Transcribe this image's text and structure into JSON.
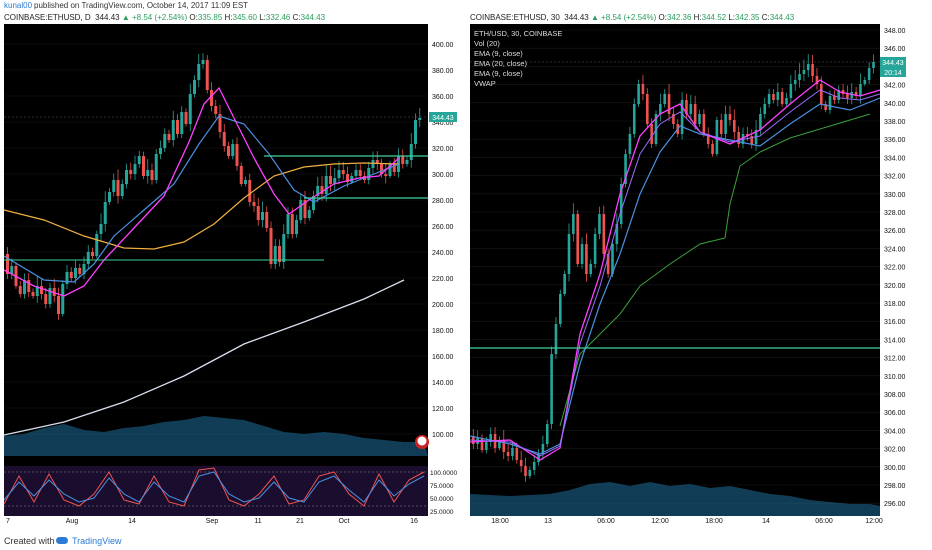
{
  "publisher": {
    "user": "kunal00",
    "text": "published on TradingView.com, October 14, 2017 11:09 EST"
  },
  "left_header": {
    "symbol": "COINBASE:ETHUSD, D",
    "price": "344.43",
    "change": "▲ +8.54 (+2.54%)",
    "o_label": "O:",
    "o": "335.85",
    "h_label": "H:",
    "h": "345.60",
    "l_label": "L:",
    "l": "332.46",
    "c_label": "C:",
    "c": "344.43"
  },
  "right_header": {
    "symbol": "COINBASE:ETHUSD, 30",
    "price": "344.43",
    "change": "▲ +8.54 (+2.54%)",
    "o_label": "O:",
    "o": "342.36",
    "h_label": "H:",
    "h": "344.52",
    "l_label": "L:",
    "l": "342.35",
    "c_label": "C:",
    "c": "344.43"
  },
  "left_chart": {
    "y_ticks": [
      "400.00",
      "380.00",
      "360.00",
      "340.00",
      "320.00",
      "300.00",
      "280.00",
      "260.00",
      "240.00",
      "220.00",
      "200.00",
      "180.00",
      "160.00",
      "140.00",
      "120.00",
      "100.00"
    ],
    "price_label": "344.43",
    "x_ticks": [
      "7",
      "Aug",
      "14",
      "Sep",
      "11",
      "21",
      "Oct",
      "16"
    ],
    "osc_ticks": [
      "100.0000",
      "75.0000",
      "50.0000",
      "25.0000"
    ]
  },
  "right_chart": {
    "legend": [
      "ETH/USD, 30, COINBASE",
      "Vol (20)",
      "EMA (9, close)",
      "EMA (20, close)",
      "EMA (9, close)",
      "VWAP"
    ],
    "y_ticks": [
      "348.00",
      "346.00",
      "344.00",
      "342.00",
      "340.00",
      "338.00",
      "336.00",
      "334.00",
      "332.00",
      "330.00",
      "328.00",
      "326.00",
      "324.00",
      "322.00",
      "320.00",
      "318.00",
      "316.00",
      "314.00",
      "312.00",
      "310.00",
      "308.00",
      "306.00",
      "304.00",
      "302.00",
      "300.00",
      "298.00",
      "296.00"
    ],
    "price_label": "344.43",
    "countdown": "20:14",
    "x_ticks": [
      "18:00",
      "13",
      "06:00",
      "12:00",
      "18:00",
      "14",
      "06:00",
      "12:00"
    ]
  },
  "footer": {
    "created_with": "Created with",
    "brand": "TradingView"
  },
  "colors": {
    "up": "#26a69a",
    "down": "#ef5350",
    "bg": "#000000",
    "ema_pink": "#ff40ff",
    "ema_blue": "#4a90e2",
    "ema_orange": "#f0b040",
    "sma_white": "#d8e0f0",
    "vwap": "#3ca03c",
    "green_line": "#3cd29c"
  }
}
